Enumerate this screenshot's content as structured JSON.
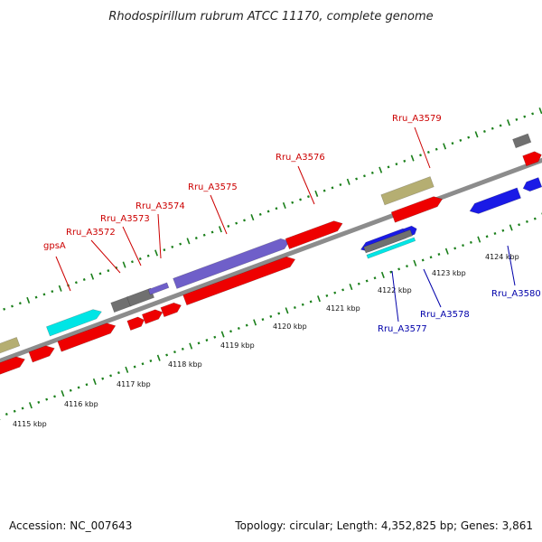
{
  "title": "Rhodospirillum rubrum ATCC 11170, complete genome",
  "footer": {
    "accession": "Accession: NC_007643",
    "summary": "Topology: circular; Length: 4,352,825 bp; Genes: 3,861"
  },
  "colors": {
    "backbone": "#8c8c8c",
    "tick": "#1a7f1a",
    "forward_label": "#cc0000",
    "reverse_label": "#0000aa",
    "red": "#ee0000",
    "blue": "#1a1ae6",
    "cyan": "#00e5e5",
    "purple": "#6f5fc9",
    "olive": "#b5ae72",
    "gray": "#707070"
  },
  "ticks": [
    {
      "label": "4115 kbp"
    },
    {
      "label": "4116 kbp"
    },
    {
      "label": "4117 kbp"
    },
    {
      "label": "4118 kbp"
    },
    {
      "label": "4119 kbp"
    },
    {
      "label": "4120 kbp"
    },
    {
      "label": "4121 kbp"
    },
    {
      "label": "4122 kbp"
    },
    {
      "label": "4123 kbp"
    },
    {
      "label": "4124 kbp"
    }
  ],
  "gene_labels": {
    "forward": [
      "gpsA",
      "Rru_A3572",
      "Rru_A3573",
      "Rru_A3574",
      "Rru_A3575",
      "Rru_A3576",
      "Rru_A3579"
    ],
    "reverse": [
      "Rru_A3577",
      "Rru_A3578",
      "Rru_A3580"
    ]
  }
}
